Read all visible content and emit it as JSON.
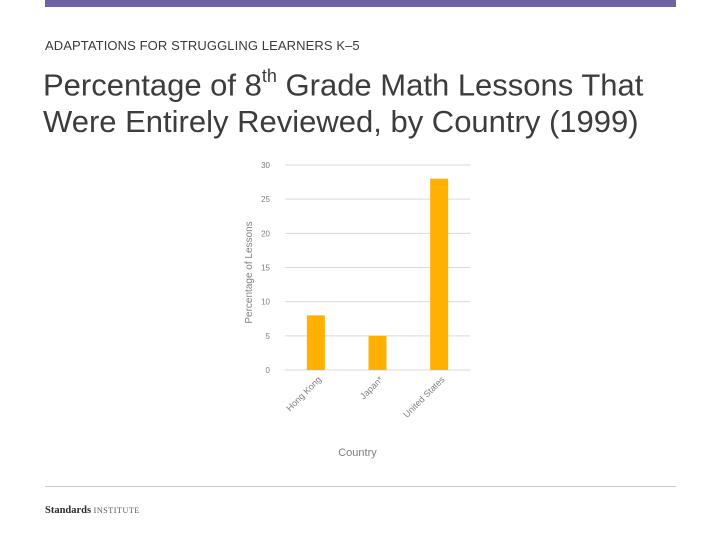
{
  "header": {
    "subtitle": "ADAPTATIONS FOR STRUGGLING LEARNERS K–5",
    "title_part1": "Percentage of 8",
    "title_sup": "th",
    "title_part2": " Grade Math Lessons That Were Entirely Reviewed, by Country (1999)"
  },
  "footer": {
    "logo_strong": "Standards",
    "logo_light": "INSTITUTE"
  },
  "colors": {
    "accent_bar": "#6e63a5",
    "bar": "#ffb000",
    "grid": "#d9d9d9",
    "axis_text": "#7f7f7f"
  },
  "chart_data": {
    "type": "bar",
    "categories": [
      "Hong Kong",
      "Japan*",
      "United States"
    ],
    "values": [
      8,
      5,
      28
    ],
    "title": "",
    "xlabel": "Country",
    "ylabel": "Percentage of Lessons",
    "ylim": [
      0,
      30
    ],
    "yticks": [
      0,
      5,
      10,
      15,
      20,
      25,
      30
    ],
    "grid": true,
    "legend": false
  }
}
